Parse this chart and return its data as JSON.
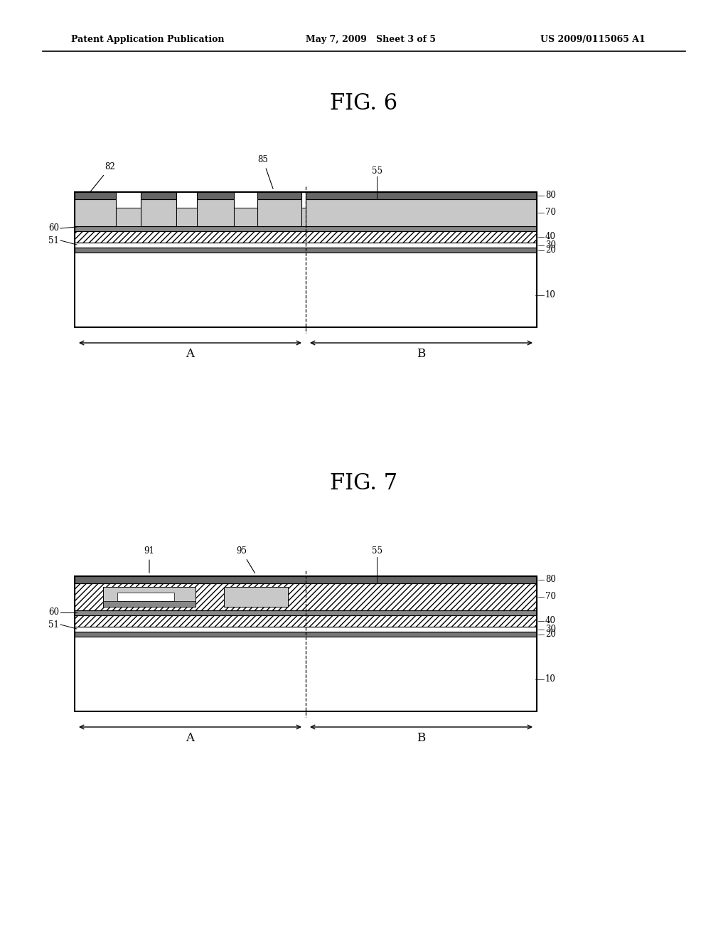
{
  "background_color": "#ffffff",
  "header_left": "Patent Application Publication",
  "header_center": "May 7, 2009   Sheet 3 of 5",
  "header_right": "US 2009/0115065 A1",
  "fig6_title": "FIG. 6",
  "fig7_title": "FIG. 7",
  "label_size": 8.5,
  "title_size": 22,
  "header_size": 9
}
